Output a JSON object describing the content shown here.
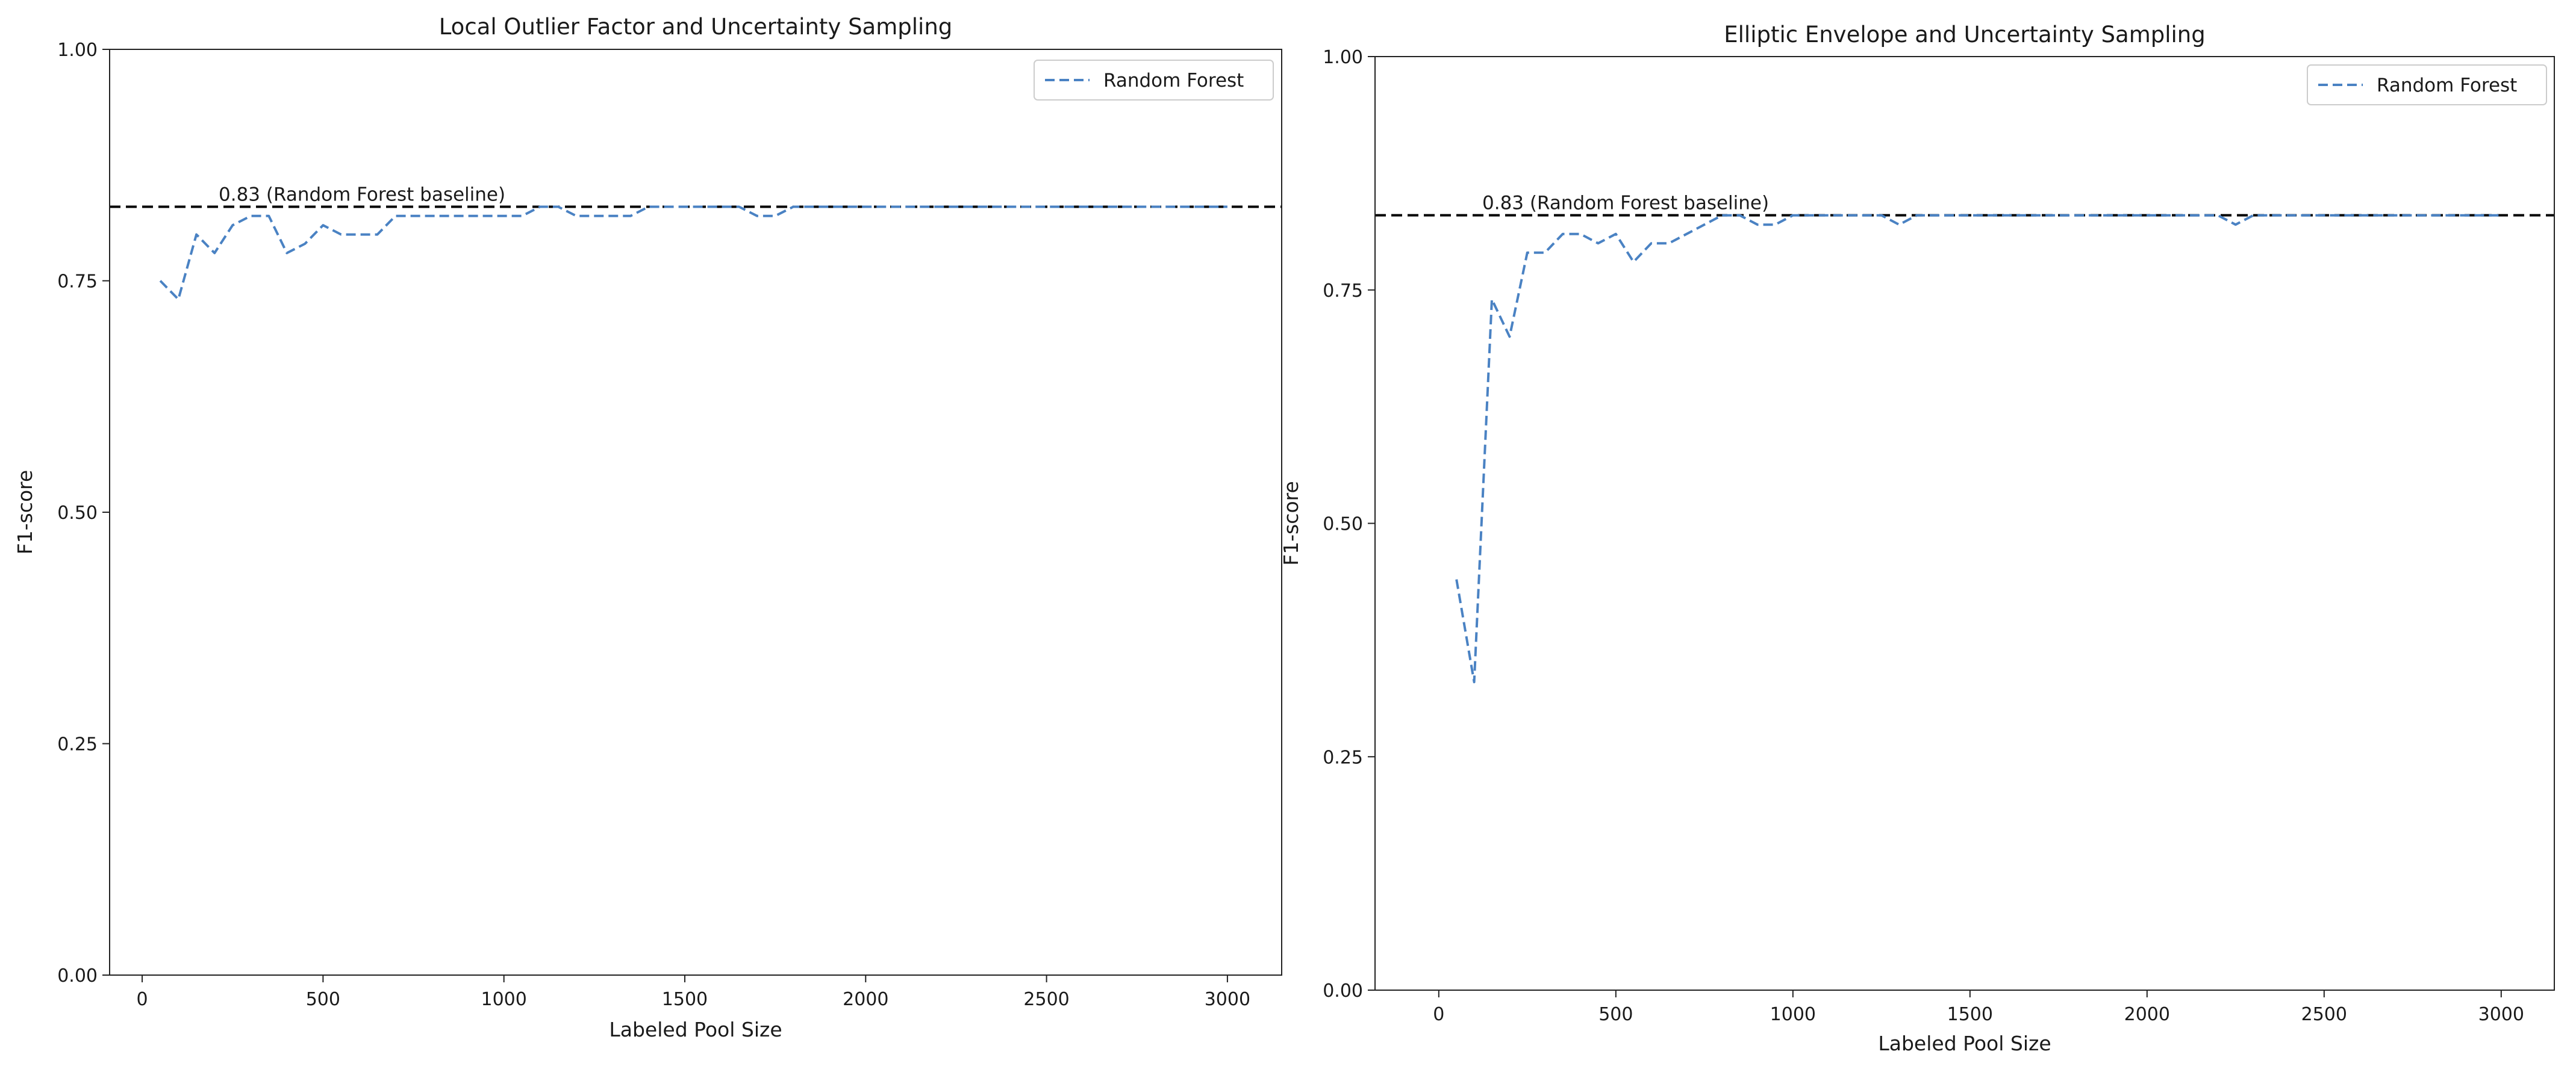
{
  "chart_data": [
    {
      "type": "line",
      "title": "Local Outlier Factor and Uncertainty Sampling",
      "xlabel": "Labeled Pool Size",
      "ylabel": "F1-score",
      "xlim": [
        -90,
        3150
      ],
      "ylim": [
        0.0,
        1.0
      ],
      "xticks": [
        0,
        500,
        1000,
        1500,
        2000,
        2500,
        3000
      ],
      "yticks": [
        0.0,
        0.25,
        0.5,
        0.75,
        1.0
      ],
      "xtick_labels": [
        "0",
        "500",
        "1000",
        "1500",
        "2000",
        "2500",
        "3000"
      ],
      "ytick_labels": [
        "0.00",
        "0.25",
        "0.50",
        "0.75",
        "1.00"
      ],
      "grid": false,
      "legend": "top-right",
      "baseline": {
        "value": 0.83,
        "label": "0.83 (Random Forest baseline)",
        "color": "#000000"
      },
      "series": [
        {
          "name": "Random Forest",
          "color": "#4a82c3",
          "style": "dashed",
          "x": [
            50,
            100,
            150,
            200,
            250,
            300,
            350,
            400,
            450,
            500,
            550,
            600,
            650,
            700,
            750,
            800,
            850,
            900,
            950,
            1000,
            1050,
            1100,
            1150,
            1200,
            1250,
            1300,
            1350,
            1400,
            1450,
            1500,
            1550,
            1600,
            1650,
            1700,
            1750,
            1800,
            1850,
            1900,
            1950,
            2000,
            2100,
            2200,
            2300,
            2400,
            2500,
            2600,
            2700,
            2800,
            2900,
            3000
          ],
          "y": [
            0.75,
            0.73,
            0.8,
            0.78,
            0.81,
            0.82,
            0.82,
            0.78,
            0.79,
            0.81,
            0.8,
            0.8,
            0.8,
            0.82,
            0.82,
            0.82,
            0.82,
            0.82,
            0.82,
            0.82,
            0.82,
            0.83,
            0.83,
            0.82,
            0.82,
            0.82,
            0.82,
            0.83,
            0.83,
            0.83,
            0.83,
            0.83,
            0.83,
            0.82,
            0.82,
            0.83,
            0.83,
            0.83,
            0.83,
            0.83,
            0.83,
            0.83,
            0.83,
            0.83,
            0.83,
            0.83,
            0.83,
            0.83,
            0.83,
            0.83
          ]
        }
      ]
    },
    {
      "type": "line",
      "title": "Elliptic Envelope and Uncertainty Sampling",
      "xlabel": "Labeled Pool Size",
      "ylabel": "F1-score",
      "xlim": [
        -180,
        3150
      ],
      "ylim": [
        0.0,
        1.0
      ],
      "xticks": [
        0,
        500,
        1000,
        1500,
        2000,
        2500,
        3000
      ],
      "yticks": [
        0.0,
        0.25,
        0.5,
        0.75,
        1.0
      ],
      "xtick_labels": [
        "0",
        "500",
        "1000",
        "1500",
        "2000",
        "2500",
        "3000"
      ],
      "ytick_labels": [
        "0.00",
        "0.25",
        "0.50",
        "0.75",
        "1.00"
      ],
      "grid": false,
      "legend": "top-right",
      "baseline": {
        "value": 0.83,
        "label": "0.83 (Random Forest baseline)",
        "color": "#000000"
      },
      "series": [
        {
          "name": "Random Forest",
          "color": "#4a82c3",
          "style": "dashed",
          "x": [
            50,
            100,
            150,
            200,
            250,
            300,
            350,
            400,
            450,
            500,
            550,
            600,
            650,
            700,
            750,
            800,
            850,
            900,
            950,
            1000,
            1050,
            1100,
            1150,
            1200,
            1250,
            1300,
            1350,
            1400,
            1500,
            1600,
            1700,
            1800,
            1900,
            2000,
            2100,
            2200,
            2250,
            2300,
            2400,
            2500,
            2600,
            2700,
            2800,
            2900,
            3000
          ],
          "y": [
            0.44,
            0.33,
            0.74,
            0.7,
            0.79,
            0.79,
            0.81,
            0.81,
            0.8,
            0.81,
            0.78,
            0.8,
            0.8,
            0.81,
            0.82,
            0.83,
            0.83,
            0.82,
            0.82,
            0.83,
            0.83,
            0.83,
            0.83,
            0.83,
            0.83,
            0.82,
            0.83,
            0.83,
            0.83,
            0.83,
            0.83,
            0.83,
            0.83,
            0.83,
            0.83,
            0.83,
            0.82,
            0.83,
            0.83,
            0.83,
            0.83,
            0.83,
            0.83,
            0.83,
            0.83
          ]
        }
      ]
    }
  ]
}
